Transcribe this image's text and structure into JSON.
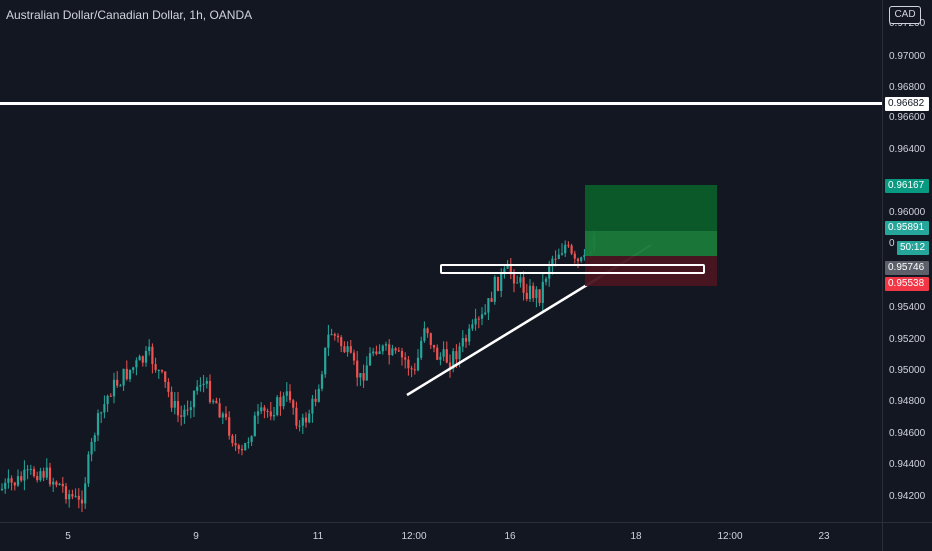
{
  "header": {
    "symbol_title": "Australian Dollar/Canadian Dollar, 1h, OANDA",
    "currency": "CAD"
  },
  "price_axis": {
    "ticks": [
      "0.97000",
      "0.96800",
      "0.96600",
      "0.96400",
      "0.96000",
      "0.95400",
      "0.95200",
      "0.95000",
      "0.94800",
      "0.94600",
      "0.94400",
      "0.94200"
    ],
    "partial_top_tick": "0.97200",
    "partial_mid_tick": "0"
  },
  "price_labels": {
    "horizontal_line": "0.96682",
    "take_profit": "0.96167",
    "current_price": "0.95891",
    "countdown": "50:12",
    "entry": "0.95746",
    "stop_loss": "0.95538"
  },
  "time_axis": {
    "ticks": [
      "5",
      "9",
      "11",
      "12:00",
      "16",
      "18",
      "12:00",
      "23"
    ]
  },
  "colors": {
    "background": "#131722",
    "bull": "#26a69a",
    "bear": "#ef5350",
    "profit_zone": "#0b5f2e",
    "loss_zone": "#4a1820",
    "take_profit_label": "#089981",
    "current_label": "#26a69a",
    "entry_label": "#5d606b",
    "stop_label": "#f23645"
  }
}
